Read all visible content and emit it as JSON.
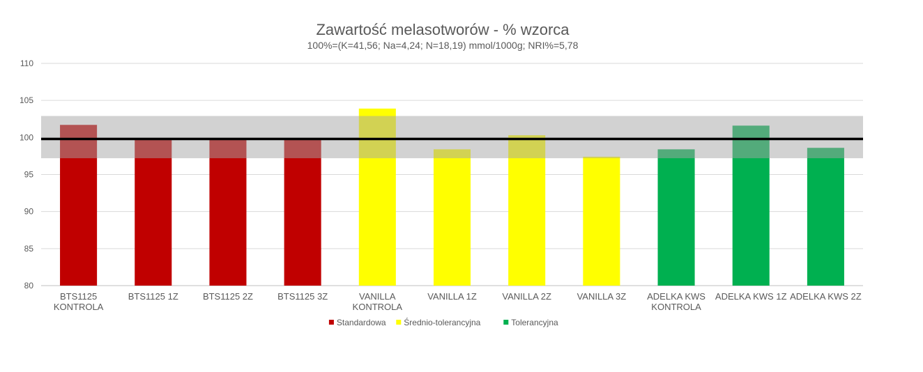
{
  "chart_data": {
    "type": "bar",
    "title": "Zawartość melasotworów - % wzorca",
    "subtitle": "100%=(K=41,56; Na=4,24; N=18,19) mmol/1000g; NRI%=5,78",
    "ylim": [
      80,
      110
    ],
    "yticks": [
      80,
      85,
      90,
      95,
      100,
      105,
      110
    ],
    "grid": true,
    "legend_position": "bottom",
    "categories": [
      [
        "BTS1125",
        "KONTROLA"
      ],
      [
        "BTS1125 1Z"
      ],
      [
        "BTS1125 2Z"
      ],
      [
        "BTS1125 3Z"
      ],
      [
        "VANILLA",
        "KONTROLA"
      ],
      [
        "VANILLA 1Z"
      ],
      [
        "VANILLA 2Z"
      ],
      [
        "VANILLA 3Z"
      ],
      [
        "ADELKA KWS",
        "KONTROLA"
      ],
      [
        "ADELKA KWS 1Z"
      ],
      [
        "ADELKA KWS 2Z"
      ]
    ],
    "series": [
      {
        "name": "Standardowa",
        "color": "#C00000",
        "values": [
          101.7,
          99.8,
          99.8,
          99.8,
          null,
          null,
          null,
          null,
          null,
          null,
          null
        ]
      },
      {
        "name": "Średnio-tolerancyjna",
        "color": "#FFFF00",
        "values": [
          null,
          null,
          null,
          null,
          103.9,
          98.4,
          100.3,
          97.4,
          null,
          null,
          null
        ]
      },
      {
        "name": "Tolerancyjna",
        "color": "#00B050",
        "values": [
          null,
          null,
          null,
          null,
          null,
          null,
          null,
          null,
          98.4,
          101.6,
          98.6
        ]
      }
    ],
    "reference_line": 99.8,
    "tolerance_band": [
      97.2,
      102.9
    ],
    "band_color": "#A6A6A6",
    "reference_line_color": "#000000"
  }
}
